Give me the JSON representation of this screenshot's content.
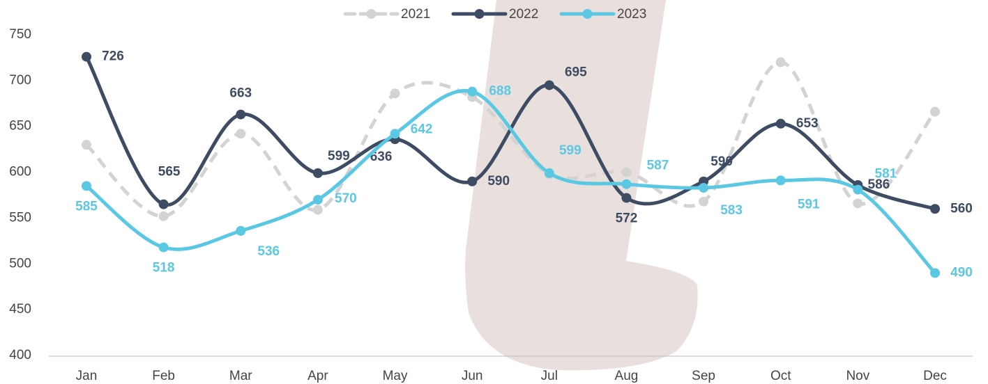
{
  "chart_data": {
    "type": "line",
    "categories": [
      "Jan",
      "Feb",
      "Mar",
      "Apr",
      "May",
      "Jun",
      "Jul",
      "Aug",
      "Sep",
      "Oct",
      "Nov",
      "Dec"
    ],
    "series": [
      {
        "name": "2021",
        "color": "#d3d3d3",
        "dashed": true,
        "values": [
          630,
          552,
          642,
          559,
          686,
          682,
          598,
          600,
          568,
          720,
          566,
          666
        ]
      },
      {
        "name": "2022",
        "color": "#3d4b63",
        "values": [
          726,
          565,
          663,
          599,
          636,
          590,
          695,
          572,
          590,
          653,
          586,
          560
        ]
      },
      {
        "name": "2023",
        "color": "#5bc8e3",
        "values": [
          585,
          518,
          536,
          570,
          642,
          688,
          599,
          587,
          583,
          591,
          581,
          490
        ]
      }
    ],
    "ylim": [
      400,
      750
    ],
    "yticks": [
      400,
      450,
      500,
      550,
      600,
      650,
      700,
      750
    ],
    "grid": false
  }
}
